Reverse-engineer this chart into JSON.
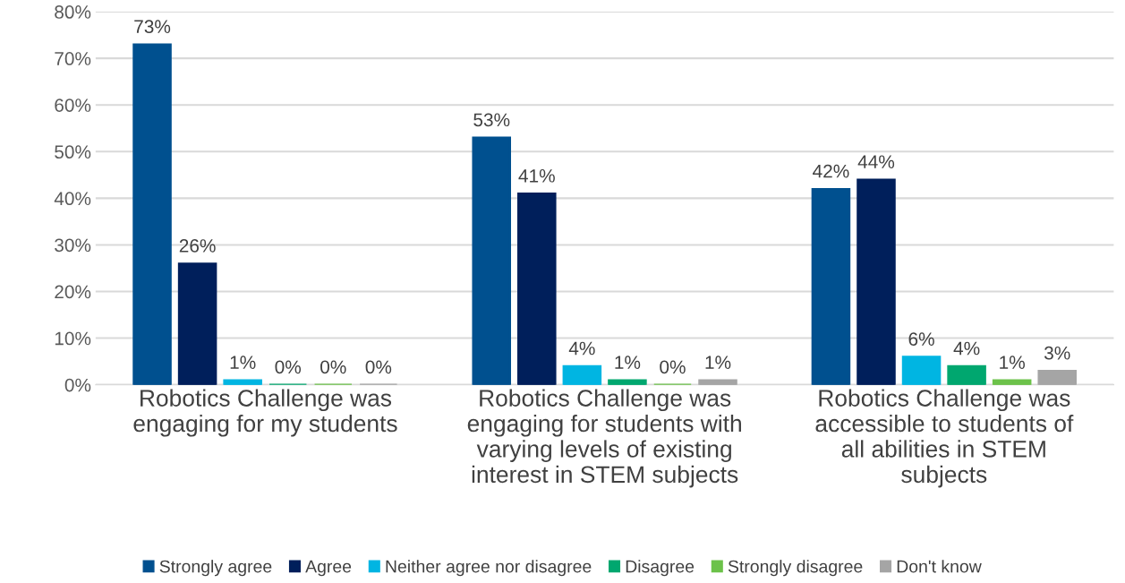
{
  "chart_data": {
    "type": "bar",
    "categories": [
      "Robotics Challenge was\nengaging for my students",
      "Robotics Challenge was\nengaging for students with\nvarying levels of existing\ninterest in STEM subjects",
      "Robotics Challenge was\naccessible to students of\nall abilities in STEM\nsubjects"
    ],
    "series": [
      {
        "name": "Strongly agree",
        "color": "#00508f",
        "values": [
          73,
          53,
          42
        ],
        "value_labels": [
          "73%",
          "53%",
          "42%"
        ]
      },
      {
        "name": "Agree",
        "color": "#001f5b",
        "values": [
          26,
          41,
          44
        ],
        "value_labels": [
          "26%",
          "41%",
          "44%"
        ]
      },
      {
        "name": "Neither agree nor disagree",
        "color": "#00b5e2",
        "values": [
          1,
          4,
          6
        ],
        "value_labels": [
          "1%",
          "4%",
          "6%"
        ]
      },
      {
        "name": "Disagree",
        "color": "#00a76f",
        "values": [
          0,
          1,
          4
        ],
        "value_labels": [
          "0%",
          "1%",
          "4%"
        ]
      },
      {
        "name": "Strongly disagree",
        "color": "#6cc24a",
        "values": [
          0,
          0,
          1
        ],
        "value_labels": [
          "0%",
          "0%",
          "1%"
        ]
      },
      {
        "name": "Don't know",
        "color": "#a5a5a5",
        "values": [
          0,
          1,
          3
        ],
        "value_labels": [
          "0%",
          "1%",
          "3%"
        ]
      }
    ],
    "ylim": [
      0,
      80
    ],
    "yticks": [
      {
        "value": 0,
        "label": "0%"
      },
      {
        "value": 10,
        "label": "10%"
      },
      {
        "value": 20,
        "label": "20%"
      },
      {
        "value": 30,
        "label": "30%"
      },
      {
        "value": 40,
        "label": "40%"
      },
      {
        "value": 50,
        "label": "50%"
      },
      {
        "value": 60,
        "label": "60%"
      },
      {
        "value": 70,
        "label": "70%"
      },
      {
        "value": 80,
        "label": "80%"
      }
    ],
    "grid": "y",
    "legend": "bottom"
  }
}
